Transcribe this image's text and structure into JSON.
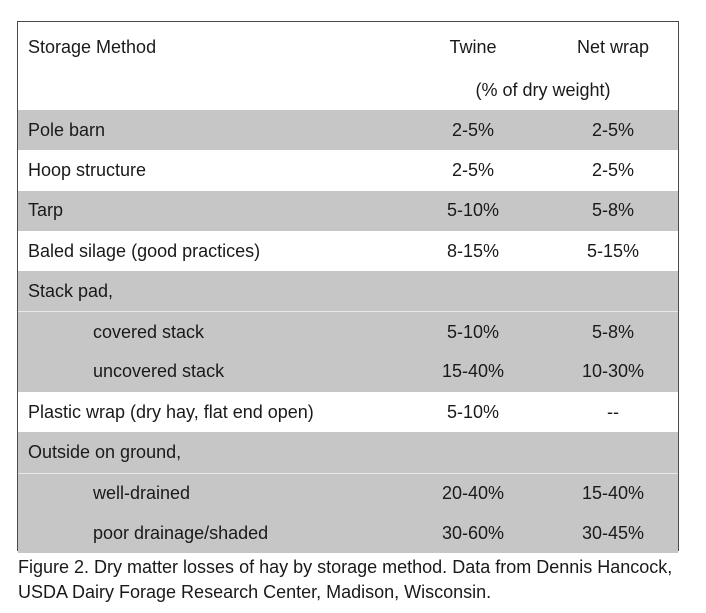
{
  "table": {
    "header": {
      "method": "Storage Method",
      "twine": "Twine",
      "net_wrap": "Net wrap",
      "unit": "(% of dry weight)"
    },
    "rows": [
      {
        "label": "Pole barn",
        "twine": "2-5%",
        "net_wrap": "2-5%",
        "shade": "grey",
        "indent": false
      },
      {
        "label": "Hoop structure",
        "twine": "2-5%",
        "net_wrap": "2-5%",
        "shade": "white",
        "indent": false
      },
      {
        "label": "Tarp",
        "twine": "5-10%",
        "net_wrap": "5-8%",
        "shade": "grey",
        "indent": false
      },
      {
        "label": "Baled silage (good practices)",
        "twine": "8-15%",
        "net_wrap": "5-15%",
        "shade": "white",
        "indent": false
      },
      {
        "label": "Stack pad,",
        "twine": "",
        "net_wrap": "",
        "shade": "grey",
        "indent": false
      },
      {
        "label": "covered stack",
        "twine": "5-10%",
        "net_wrap": "5-8%",
        "shade": "grey",
        "indent": true
      },
      {
        "label": "uncovered stack",
        "twine": "15-40%",
        "net_wrap": "10-30%",
        "shade": "grey",
        "indent": true
      },
      {
        "label": "Plastic wrap (dry hay, flat end open)",
        "twine": "5-10%",
        "net_wrap": "--",
        "shade": "white",
        "indent": false
      },
      {
        "label": "Outside on ground,",
        "twine": "",
        "net_wrap": "",
        "shade": "grey",
        "indent": false
      },
      {
        "label": "well-drained",
        "twine": "20-40%",
        "net_wrap": "15-40%",
        "shade": "grey",
        "indent": true
      },
      {
        "label": "poor drainage/shaded",
        "twine": "30-60%",
        "net_wrap": "30-45%",
        "shade": "grey",
        "indent": true
      }
    ]
  },
  "caption": "Figure 2. Dry matter losses of hay by storage method. Data from Dennis Hancock, USDA Dairy Forage Research Center, Madison, Wisconsin.",
  "colors": {
    "row_grey": "#c6c6c6",
    "row_white": "#ffffff",
    "border": "#4a4a4a"
  }
}
